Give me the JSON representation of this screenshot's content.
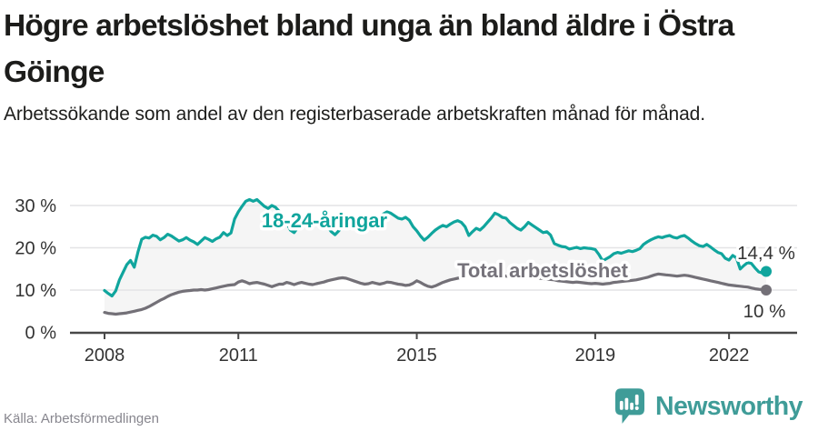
{
  "header": {
    "title": "Högre arbetslöshet bland unga än bland äldre i Östra Göinge",
    "subtitle": "Arbetssökande som andel av den registerbaserade arbetskraften månad för månad."
  },
  "footer": {
    "source": "Källa: Arbetsförmedlingen",
    "logo_text": "Newsworthy"
  },
  "colors": {
    "accent_teal": "#10a59d",
    "series_gray": "#737077",
    "label_gray": "#76737b",
    "grid": "#e4e4e6",
    "axis": "#474747",
    "tick_text": "#333333",
    "band_fill": "rgba(130,130,130,0.08)",
    "logo_teal": "#3f9c98",
    "title_text": "#1c1c1a",
    "source_text": "#87868e"
  },
  "chart_data": {
    "type": "line",
    "title": "Högre arbetslöshet bland unga än bland äldre i Östra Göinge",
    "subtitle": "Arbetssökande som andel av den registerbaserade arbetskraften månad för månad.",
    "x_start": "2008-01",
    "x_end": "2022-11",
    "x_tick_years": [
      2008,
      2011,
      2015,
      2019,
      2022
    ],
    "x_tick_labels": [
      "2008",
      "2011",
      "2015",
      "2019",
      "2022"
    ],
    "y_ticks": [
      0,
      10,
      20,
      30
    ],
    "y_tick_labels": [
      "0 %",
      "10 %",
      "20 %",
      "30 %"
    ],
    "ylim": [
      0,
      33
    ],
    "unit": "%",
    "grid": true,
    "legend_position": "inline-labels",
    "series": [
      {
        "name": "18-24-åringar",
        "color": "#10a59d",
        "end_label": "14,4 %",
        "end_value": 14.4,
        "values": [
          9.9,
          9.2,
          8.6,
          9.8,
          12.4,
          14.2,
          16,
          17,
          15.4,
          19,
          22,
          22.5,
          22.3,
          23,
          22.7,
          21.9,
          22.4,
          23.2,
          22.8,
          22.2,
          21.6,
          21.9,
          22.4,
          21.8,
          21.4,
          20.8,
          21.6,
          22.4,
          22,
          21.5,
          22.1,
          22.5,
          23.6,
          22.9,
          23.5,
          26.8,
          28.5,
          29.8,
          31,
          31.4,
          31,
          31.4,
          30.6,
          29.8,
          29.3,
          30,
          29.6,
          28.6,
          27.5,
          26,
          24.2,
          23.6,
          24.8,
          26.5,
          27.2,
          26.8,
          26,
          26.5,
          27,
          26.2,
          25,
          23.8,
          23.1,
          24,
          25.2,
          26,
          26.5,
          26.2,
          25.8,
          26.3,
          26.8,
          26.4,
          26.6,
          27,
          27.5,
          28,
          28.5,
          28.2,
          27.6,
          27,
          26.8,
          27.2,
          26.5,
          25,
          24,
          22.8,
          21.8,
          22.5,
          23.4,
          24.2,
          24.8,
          25.3,
          25,
          25.6,
          26.1,
          26.4,
          26,
          25,
          22.9,
          23.8,
          24.6,
          24.2,
          25,
          26,
          27,
          28.2,
          27.8,
          27.2,
          27,
          26,
          25.3,
          24.6,
          24.2,
          25,
          26,
          25.4,
          24.8,
          24.2,
          23.6,
          23.8,
          23,
          21,
          20.6,
          20.3,
          20.2,
          19.7,
          19.9,
          20.1,
          19.8,
          20,
          19.9,
          19.8,
          19.6,
          18.4,
          16.9,
          17.4,
          17.9,
          18.6,
          18.9,
          18.7,
          19,
          19.3,
          19.1,
          19.4,
          19.8,
          20.8,
          21.4,
          21.9,
          22.3,
          22.6,
          22.4,
          22.7,
          22.9,
          22.5,
          22.3,
          22.7,
          22.9,
          22.3,
          21.6,
          21,
          20.5,
          20.3,
          20.8,
          20.2,
          19.5,
          18.9,
          18.6,
          17.5,
          17.1,
          18.2,
          17.6,
          15,
          15.8,
          16.5,
          16.3,
          15.2,
          14.3,
          14,
          14.4
        ]
      },
      {
        "name": "Total arbetslöshet",
        "color": "#737077",
        "end_label": "10 %",
        "end_value": 10,
        "values": [
          4.7,
          4.5,
          4.4,
          4.3,
          4.4,
          4.5,
          4.6,
          4.8,
          5,
          5.2,
          5.4,
          5.7,
          6.1,
          6.6,
          7.1,
          7.6,
          8,
          8.5,
          8.9,
          9.2,
          9.5,
          9.7,
          9.8,
          9.9,
          10,
          10,
          10.1,
          10,
          10.1,
          10.3,
          10.5,
          10.7,
          10.9,
          11.1,
          11.2,
          11.3,
          11.9,
          12.2,
          11.9,
          11.5,
          11.7,
          11.8,
          11.6,
          11.4,
          11.1,
          10.8,
          11.1,
          11.4,
          11.4,
          11.8,
          11.6,
          11.3,
          11.6,
          11.8,
          11.6,
          11.4,
          11.3,
          11.5,
          11.7,
          11.9,
          12.2,
          12.4,
          12.6,
          12.8,
          12.9,
          12.8,
          12.5,
          12.2,
          11.9,
          11.6,
          11.4,
          11.5,
          11.8,
          11.6,
          11.4,
          11.6,
          11.9,
          11.8,
          11.6,
          11.4,
          11.3,
          11.1,
          11.2,
          11.6,
          12.2,
          11.8,
          11.3,
          10.9,
          10.7,
          11,
          11.4,
          11.8,
          12.1,
          12.4,
          12.6,
          12.8,
          13,
          13.2,
          13.3,
          13.4,
          13.5,
          13.5,
          13.4,
          13.3,
          13.4,
          13.5,
          13.6,
          13.5,
          13.3,
          13.2,
          13.1,
          13,
          12.9,
          12.8,
          12.9,
          13,
          12.9,
          12.8,
          12.7,
          12.6,
          12.5,
          12.4,
          12.2,
          12.1,
          12,
          11.9,
          11.8,
          11.9,
          11.8,
          11.7,
          11.6,
          11.5,
          11.6,
          11.5,
          11.4,
          11.5,
          11.6,
          11.8,
          11.9,
          12,
          12.1,
          12.2,
          12.3,
          12.4,
          12.6,
          12.8,
          13,
          13.3,
          13.6,
          13.8,
          13.7,
          13.6,
          13.5,
          13.4,
          13.3,
          13.4,
          13.5,
          13.4,
          13.2,
          13,
          12.8,
          12.6,
          12.4,
          12.2,
          12,
          11.8,
          11.6,
          11.4,
          11.2,
          11.1,
          11,
          10.9,
          10.8,
          10.7,
          10.5,
          10.3,
          10.2,
          10.1,
          10
        ]
      }
    ]
  }
}
